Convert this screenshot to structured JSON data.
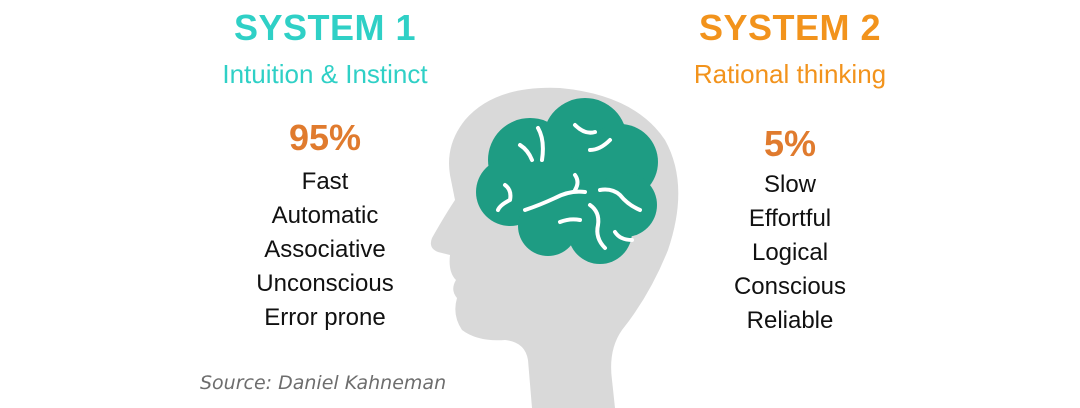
{
  "system1": {
    "title": "SYSTEM 1",
    "subtitle": "Intuition & Instinct",
    "percent": "95%",
    "traits": [
      "Fast",
      "Automatic",
      "Associative",
      "Unconscious",
      "Error prone"
    ]
  },
  "system2": {
    "title": "SYSTEM 2",
    "subtitle": "Rational thinking",
    "percent": "5%",
    "traits": [
      "Slow",
      "Effortful",
      "Logical",
      "Conscious",
      "Reliable"
    ]
  },
  "source": "Source: Daniel Kahneman",
  "colors": {
    "system1": "#2fd0c6",
    "system2": "#f2931c",
    "percent": "#e07b2e",
    "head": "#d9d9d9",
    "brain": "#1e9c83"
  },
  "icons": {
    "head": "head-silhouette-icon",
    "brain": "brain-icon"
  }
}
